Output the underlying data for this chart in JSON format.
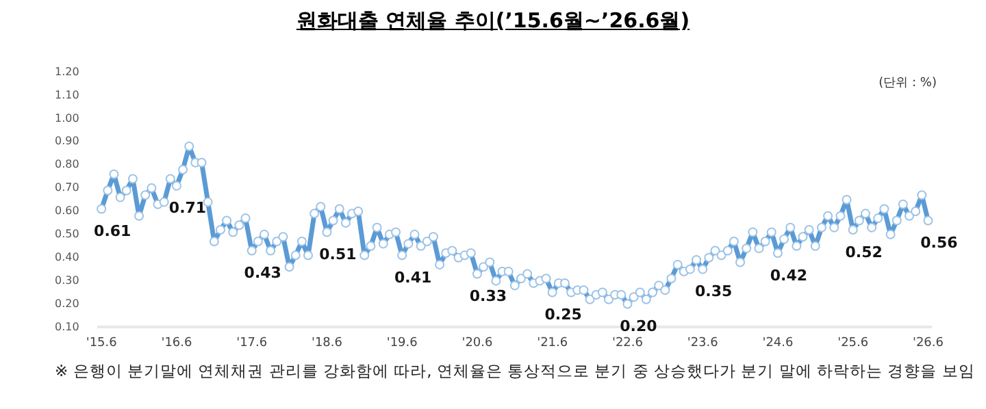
{
  "chart_data": {
    "type": "line",
    "title": "원화대출 연체율 추이(’15.6월~’26.6월)",
    "annotations": [
      "(단위 : %)",
      "※ 은행이 분기말에 연체채권 관리를 강화함에 따라, 연체율은 통상적으로 분기 중 상승했다가 분기 말에 하락하는 경향을 보임"
    ],
    "categories": [
      "'15.6",
      null,
      null,
      null,
      null,
      null,
      null,
      null,
      null,
      null,
      null,
      null,
      "'16.6",
      null,
      null,
      null,
      null,
      null,
      null,
      null,
      null,
      null,
      null,
      null,
      "'17.6",
      null,
      null,
      null,
      null,
      null,
      null,
      null,
      null,
      null,
      null,
      null,
      "'18.6",
      null,
      null,
      null,
      null,
      null,
      null,
      null,
      null,
      null,
      null,
      null,
      "'19.6",
      null,
      null,
      null,
      null,
      null,
      null,
      null,
      null,
      null,
      null,
      null,
      "'20.6",
      null,
      null,
      null,
      null,
      null,
      null,
      null,
      null,
      null,
      null,
      null,
      "'21.6",
      null,
      null,
      null,
      null,
      null,
      null,
      null,
      null,
      null,
      null,
      null,
      "'22.6",
      null,
      null,
      null,
      null,
      null,
      null,
      null,
      null,
      null,
      null,
      null,
      "'23.6",
      null,
      null,
      null,
      null,
      null,
      null,
      null,
      null,
      null,
      null,
      null,
      "'24.6",
      null,
      null,
      null,
      null,
      null,
      null,
      null,
      null,
      null,
      null,
      null,
      "'25.6",
      null,
      null,
      null,
      null,
      null,
      null,
      null,
      null,
      null,
      null,
      null,
      "'26.6"
    ],
    "series": [
      {
        "color": "#5b9bd5",
        "values": [
          0.61,
          0.69,
          0.76,
          0.66,
          0.69,
          0.74,
          0.58,
          0.67,
          0.7,
          0.63,
          0.64,
          0.74,
          0.71,
          0.78,
          0.88,
          0.81,
          0.81,
          0.64,
          0.47,
          0.52,
          0.56,
          0.51,
          0.54,
          0.57,
          0.43,
          0.47,
          0.5,
          0.43,
          0.47,
          0.49,
          0.36,
          0.41,
          0.47,
          0.41,
          0.59,
          0.62,
          0.51,
          0.56,
          0.61,
          0.55,
          0.59,
          0.6,
          0.41,
          0.45,
          0.53,
          0.46,
          0.5,
          0.51,
          0.41,
          0.46,
          0.5,
          0.45,
          0.47,
          0.49,
          0.37,
          0.42,
          0.43,
          0.4,
          0.41,
          0.42,
          0.33,
          0.36,
          0.38,
          0.3,
          0.34,
          0.34,
          0.28,
          0.31,
          0.33,
          0.29,
          0.3,
          0.31,
          0.25,
          0.29,
          0.29,
          0.25,
          0.26,
          0.26,
          0.22,
          0.24,
          0.25,
          0.22,
          0.24,
          0.24,
          0.2,
          0.23,
          0.25,
          0.22,
          0.25,
          0.28,
          0.26,
          0.31,
          0.37,
          0.34,
          0.35,
          0.39,
          0.35,
          0.4,
          0.43,
          0.41,
          0.43,
          0.47,
          0.38,
          0.44,
          0.51,
          0.44,
          0.47,
          0.51,
          0.42,
          0.48,
          0.53,
          0.45,
          0.49,
          0.52,
          0.45,
          0.53,
          0.58,
          0.53,
          0.58,
          0.65,
          0.52,
          0.56,
          0.59,
          0.53,
          0.57,
          0.61,
          0.5,
          0.56,
          0.63,
          0.58,
          0.6,
          0.67,
          0.56
        ],
        "value_labels": [
          "0.61",
          null,
          null,
          null,
          null,
          null,
          null,
          null,
          null,
          null,
          null,
          null,
          "0.71",
          null,
          null,
          null,
          null,
          null,
          null,
          null,
          null,
          null,
          null,
          null,
          "0.43",
          null,
          null,
          null,
          null,
          null,
          null,
          null,
          null,
          null,
          null,
          null,
          "0.51",
          null,
          null,
          null,
          null,
          null,
          null,
          null,
          null,
          null,
          null,
          null,
          "0.41",
          null,
          null,
          null,
          null,
          null,
          null,
          null,
          null,
          null,
          null,
          null,
          "0.33",
          null,
          null,
          null,
          null,
          null,
          null,
          null,
          null,
          null,
          null,
          null,
          "0.25",
          null,
          null,
          null,
          null,
          null,
          null,
          null,
          null,
          null,
          null,
          null,
          "0.20",
          null,
          null,
          null,
          null,
          null,
          null,
          null,
          null,
          null,
          null,
          null,
          "0.35",
          null,
          null,
          null,
          null,
          null,
          null,
          null,
          null,
          null,
          null,
          null,
          "0.42",
          null,
          null,
          null,
          null,
          null,
          null,
          null,
          null,
          null,
          null,
          null,
          "0.52",
          null,
          null,
          null,
          null,
          null,
          null,
          null,
          null,
          null,
          null,
          null,
          "0.56"
        ]
      }
    ],
    "ylim": [
      0.1,
      1.2
    ],
    "yticks": [
      {
        "value": 0.1,
        "label": "0.10"
      },
      {
        "value": 0.2,
        "label": "0.20"
      },
      {
        "value": 0.3,
        "label": "0.30"
      },
      {
        "value": 0.4,
        "label": "0.40"
      },
      {
        "value": 0.5,
        "label": "0.50"
      },
      {
        "value": 0.6,
        "label": "0.60"
      },
      {
        "value": 0.7,
        "label": "0.70"
      },
      {
        "value": 0.8,
        "label": "0.80"
      },
      {
        "value": 0.9,
        "label": "0.90"
      },
      {
        "value": 1.0,
        "label": "1.00"
      },
      {
        "value": 1.1,
        "label": "1.10"
      },
      {
        "value": 1.2,
        "label": "1.20"
      }
    ],
    "grid": false,
    "legend": false,
    "marker": "circle",
    "line_style": "solid"
  }
}
